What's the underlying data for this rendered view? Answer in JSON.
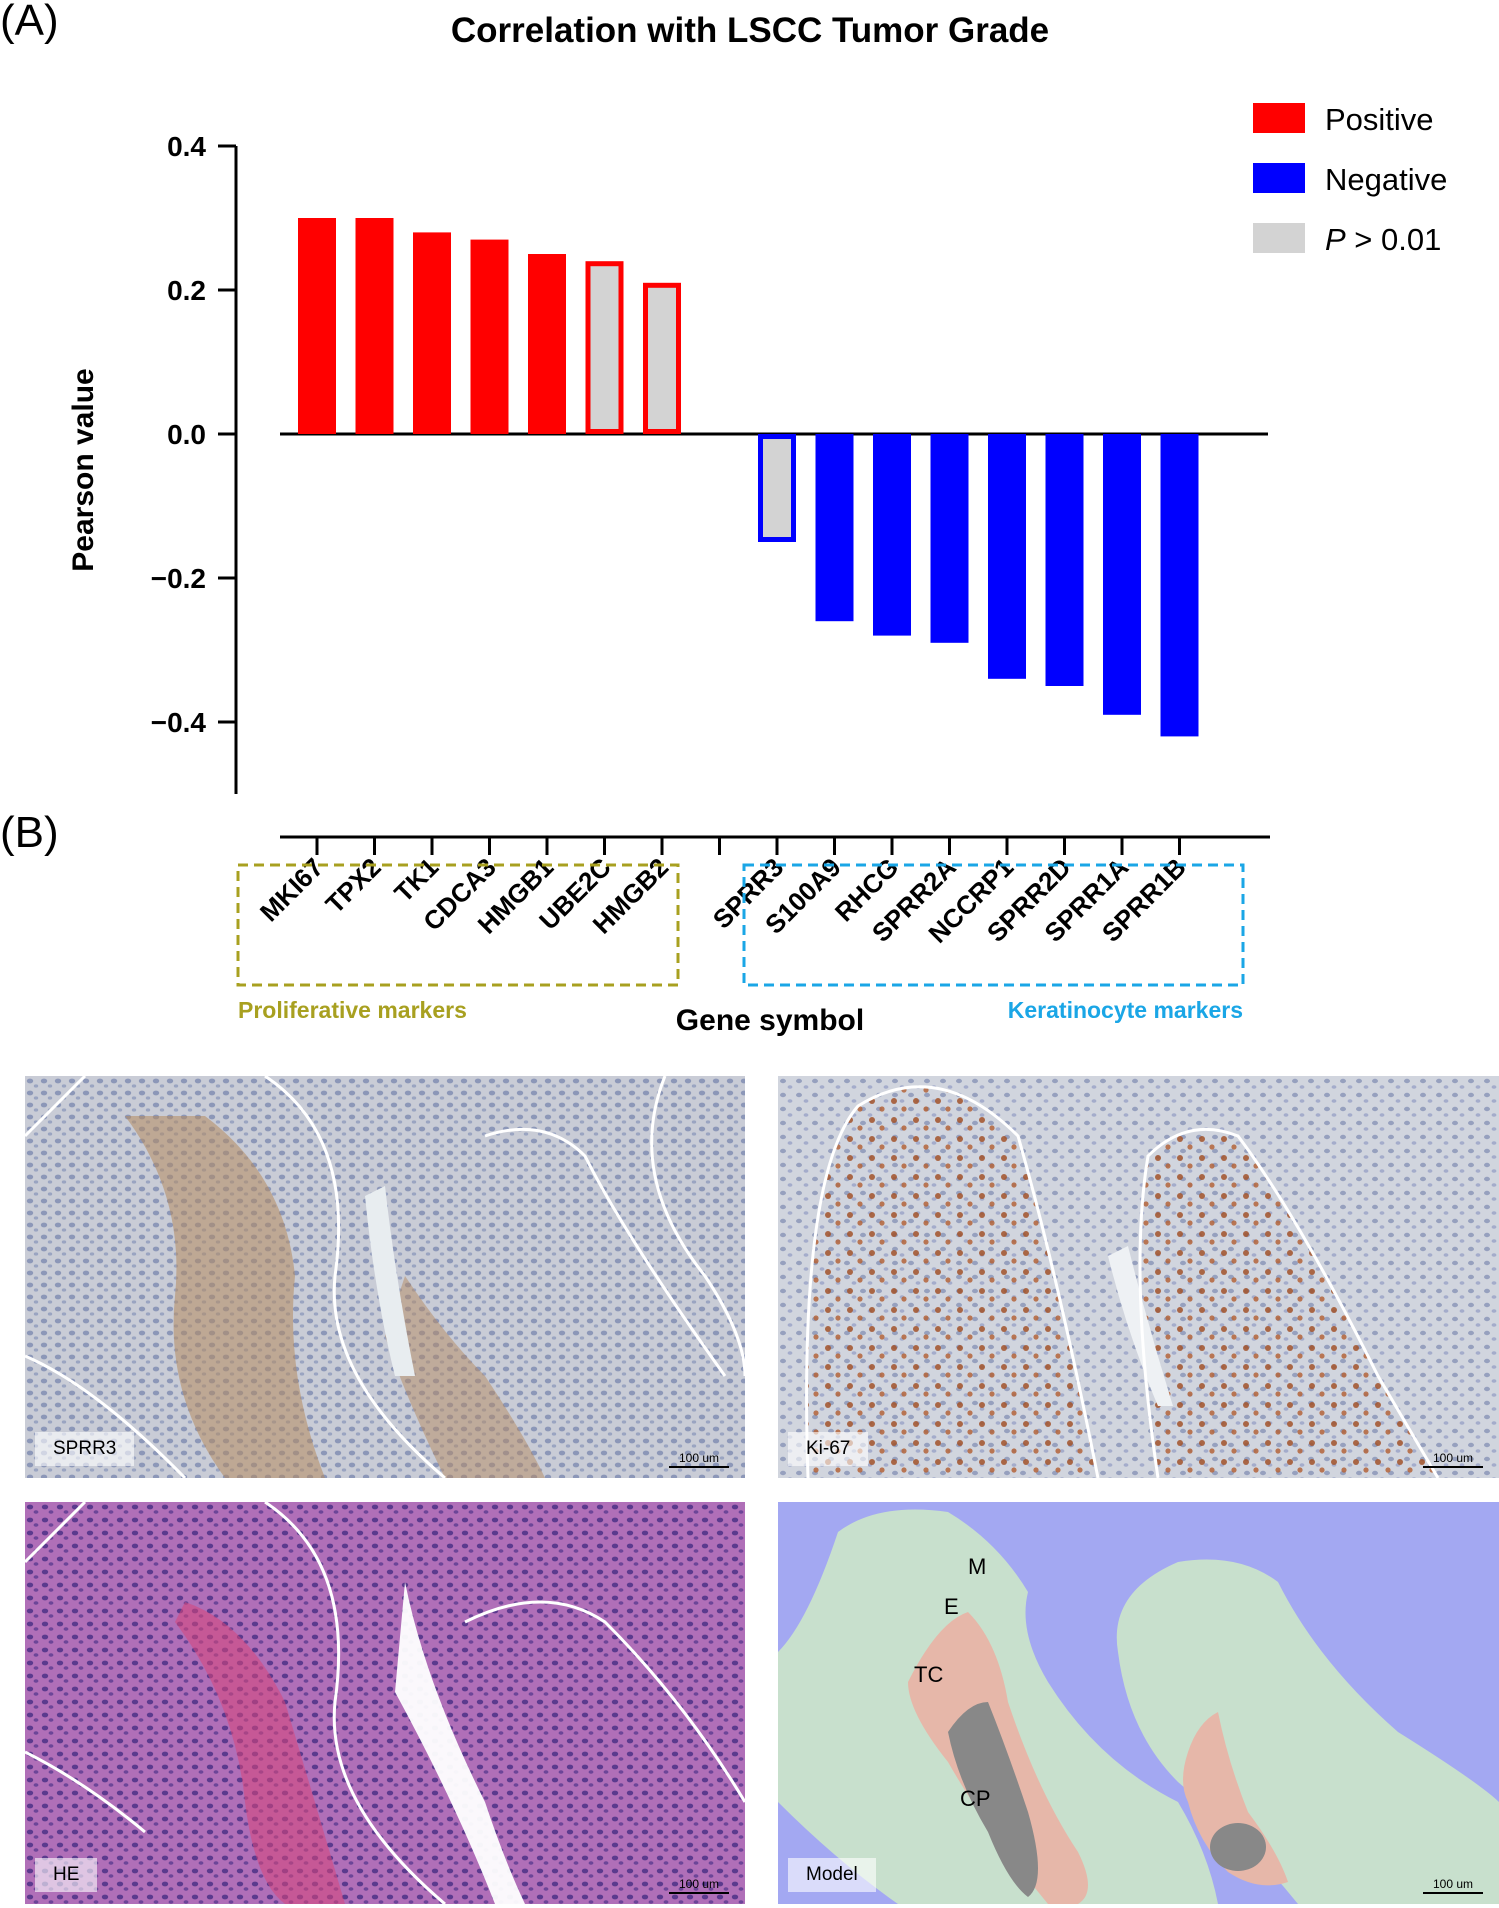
{
  "panel_a": {
    "letter": "(A)"
  },
  "panel_b": {
    "letter": "(B)"
  },
  "chart_data": {
    "type": "bar",
    "title": "Correlation with LSCC Tumor Grade",
    "ylabel": "Pearson value",
    "xlabel": "Gene symbol",
    "ylim": [
      -0.5,
      0.4
    ],
    "yticks": [
      "0.4",
      "0.2",
      "0.0",
      "−0.2",
      "−0.4"
    ],
    "ytick_values": [
      0.4,
      0.2,
      0.0,
      -0.2,
      -0.4
    ],
    "categories": [
      "MKI67",
      "TPX2",
      "TK1",
      "CDCA3",
      "HMGB1",
      "UBE2C",
      "HMGB2",
      "",
      "SPRR3",
      "S100A9",
      "RHCG",
      "SPRR2A",
      "NCCRP1",
      "SPRR2D",
      "SPRR1A",
      "SPRR1B"
    ],
    "values": [
      0.3,
      0.3,
      0.28,
      0.27,
      0.25,
      0.24,
      0.21,
      null,
      -0.15,
      -0.26,
      -0.28,
      -0.29,
      -0.34,
      -0.35,
      -0.39,
      -0.42
    ],
    "significant": [
      true,
      true,
      true,
      true,
      true,
      false,
      false,
      null,
      false,
      true,
      true,
      true,
      true,
      true,
      true,
      true
    ],
    "colors": {
      "positive": "#ff0000",
      "negative": "#0000ff",
      "nonsignificant_fill": "#d3d3d3"
    },
    "legend": {
      "position": "top-right",
      "items": [
        {
          "label": "Positive",
          "color": "#ff0000"
        },
        {
          "label": "Negative",
          "color": "#0000ff"
        },
        {
          "label_italic": "P",
          "label": " > 0.01",
          "color": "#d3d3d3"
        }
      ]
    },
    "groups": [
      {
        "label": "Proliferative markers",
        "color": "#a8a020",
        "members": [
          "MKI67",
          "TPX2",
          "TK1",
          "CDCA3",
          "HMGB1",
          "UBE2C",
          "HMGB2"
        ]
      },
      {
        "label": "Keratinocyte markers",
        "color": "#1aa6e6",
        "members": [
          "SPRR3",
          "S100A9",
          "RHCG",
          "SPRR2A",
          "NCCRP1",
          "SPRR2D",
          "SPRR1A",
          "SPRR1B"
        ]
      }
    ]
  },
  "images": [
    {
      "label": "SPRR3",
      "scale": "100 um"
    },
    {
      "label": "Ki-67",
      "scale": "100 um"
    },
    {
      "label": "HE",
      "scale": "100 um"
    },
    {
      "label": "Model",
      "scale": "100 um",
      "regions": [
        "M",
        "E",
        "TC",
        "CP"
      ]
    }
  ]
}
